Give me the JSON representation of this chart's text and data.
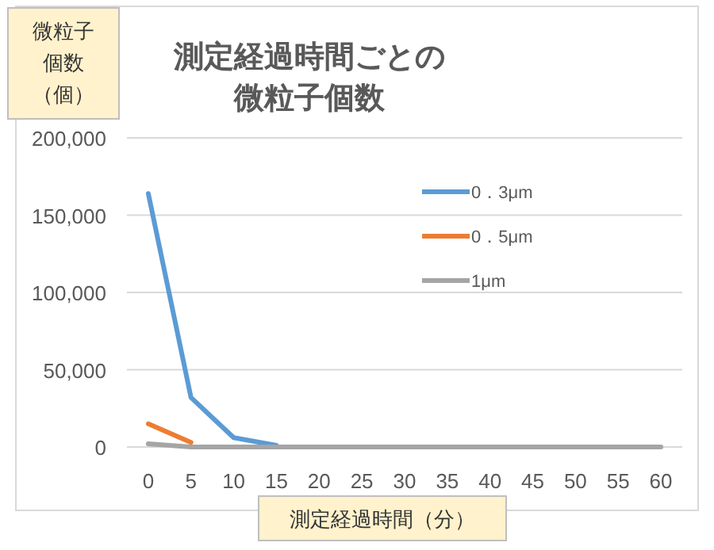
{
  "chart_data": {
    "type": "line",
    "title": "測定経過時間ごとの微粒子個数",
    "ylabel": "微粒子個数（個）",
    "xlabel": "測定経過時間（分）",
    "categories": [
      "0",
      "5",
      "10",
      "15",
      "20",
      "25",
      "30",
      "35",
      "40",
      "45",
      "50",
      "55",
      "60"
    ],
    "series": [
      {
        "name": "0．3μm",
        "color": "#5b9bd5",
        "values": [
          164000,
          32000,
          6000,
          1000,
          null,
          null,
          null,
          null,
          null,
          null,
          null,
          null,
          null
        ]
      },
      {
        "name": "0．5μm",
        "color": "#ed7d31",
        "values": [
          15000,
          3000,
          null,
          null,
          null,
          null,
          null,
          null,
          null,
          null,
          null,
          null,
          null
        ]
      },
      {
        "name": "1μm",
        "color": "#a5a5a5",
        "values": [
          2000,
          0,
          0,
          0,
          0,
          0,
          0,
          0,
          0,
          0,
          0,
          0,
          0
        ]
      }
    ],
    "ylim": [
      0,
      200000
    ],
    "yticks": [
      {
        "value": 0,
        "label": "0"
      },
      {
        "value": 50000,
        "label": "50,000"
      },
      {
        "value": 100000,
        "label": "100,000"
      },
      {
        "value": 150000,
        "label": "150,000"
      },
      {
        "value": 200000,
        "label": "200,000"
      }
    ],
    "grid": "y",
    "legend": "top right",
    "marker": "none"
  }
}
